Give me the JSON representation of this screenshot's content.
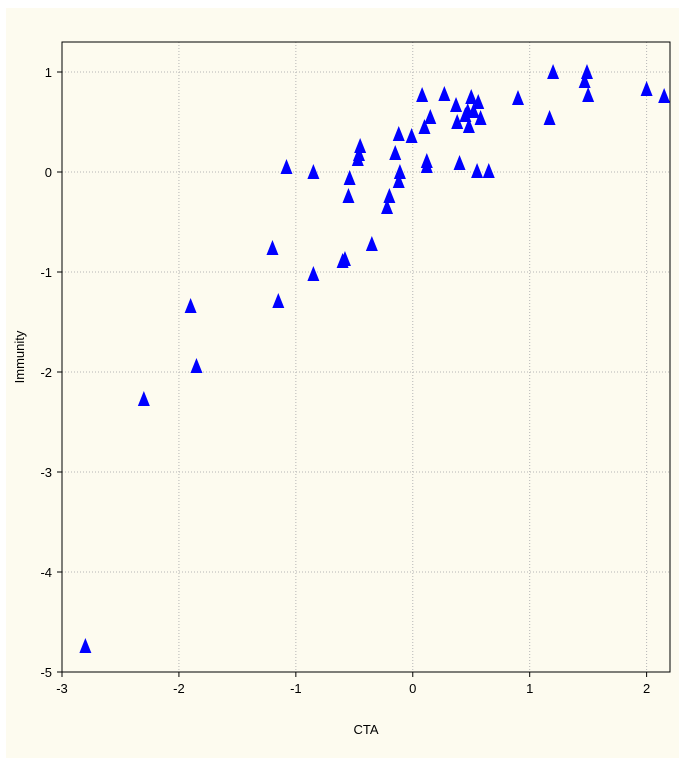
{
  "chart_data": {
    "type": "scatter",
    "title": "",
    "xlabel": "CTA",
    "ylabel": "Immunity",
    "xlim": [
      -3,
      2.2
    ],
    "ylim": [
      -5,
      1.3
    ],
    "xticks": [
      -3,
      -2,
      -1,
      0,
      1,
      2
    ],
    "yticks": [
      -5,
      -4,
      -3,
      -2,
      -1,
      0,
      1
    ],
    "xtick_labels": [
      "-3",
      "-2",
      "-1",
      "0",
      "1",
      "2"
    ],
    "ytick_labels": [
      "-5",
      "-4",
      "-3",
      "-2",
      "-1",
      "0",
      "1"
    ],
    "grid": true,
    "marker": "triangle",
    "marker_color": "#0000ff",
    "background": "#fdfbef",
    "points": [
      [
        -2.8,
        -4.75
      ],
      [
        -2.3,
        -2.28
      ],
      [
        -1.9,
        -1.35
      ],
      [
        -1.85,
        -1.95
      ],
      [
        -1.2,
        -0.77
      ],
      [
        -1.15,
        -1.3
      ],
      [
        -1.08,
        0.04
      ],
      [
        -0.85,
        -1.03
      ],
      [
        -0.85,
        -0.01
      ],
      [
        -0.6,
        -0.9
      ],
      [
        -0.58,
        -0.88
      ],
      [
        -0.55,
        -0.25
      ],
      [
        -0.54,
        -0.07
      ],
      [
        -0.47,
        0.12
      ],
      [
        -0.46,
        0.17
      ],
      [
        -0.45,
        0.25
      ],
      [
        -0.35,
        -0.73
      ],
      [
        -0.22,
        -0.36
      ],
      [
        -0.2,
        -0.25
      ],
      [
        -0.15,
        0.18
      ],
      [
        -0.12,
        0.37
      ],
      [
        -0.12,
        -0.1
      ],
      [
        -0.11,
        -0.01
      ],
      [
        -0.01,
        0.35
      ],
      [
        0.08,
        0.76
      ],
      [
        0.1,
        0.44
      ],
      [
        0.12,
        0.1
      ],
      [
        0.12,
        0.05
      ],
      [
        0.15,
        0.54
      ],
      [
        0.27,
        0.77
      ],
      [
        0.37,
        0.66
      ],
      [
        0.38,
        0.49
      ],
      [
        0.4,
        0.08
      ],
      [
        0.45,
        0.56
      ],
      [
        0.47,
        0.6
      ],
      [
        0.48,
        0.45
      ],
      [
        0.5,
        0.74
      ],
      [
        0.52,
        0.6
      ],
      [
        0.55,
        0.0
      ],
      [
        0.56,
        0.69
      ],
      [
        0.58,
        0.53
      ],
      [
        0.65,
        0.0
      ],
      [
        0.9,
        0.73
      ],
      [
        1.17,
        0.53
      ],
      [
        1.2,
        0.99
      ],
      [
        1.47,
        0.9
      ],
      [
        1.49,
        0.99
      ],
      [
        1.5,
        0.76
      ],
      [
        2.0,
        0.82
      ],
      [
        2.15,
        0.75
      ]
    ]
  }
}
